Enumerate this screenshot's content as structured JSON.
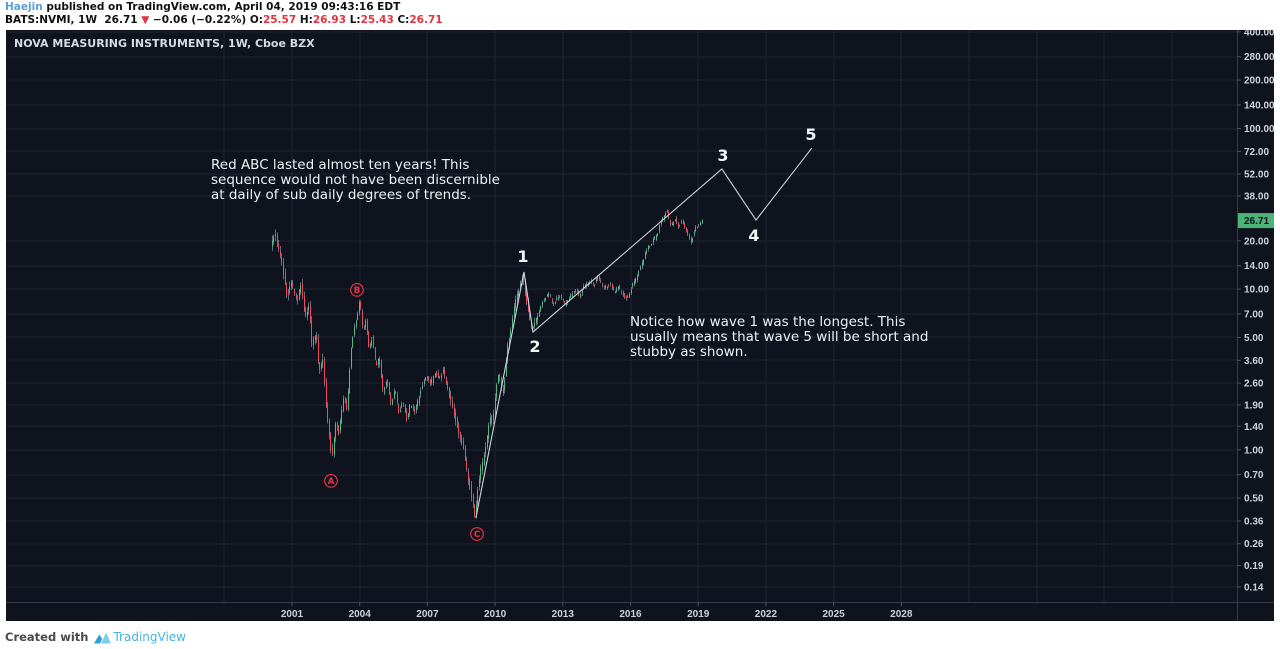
{
  "header": {
    "author": "Haejin",
    "published": " published on TradingView.com, April 04, 2019 09:43:16 EDT",
    "symbol": "BATS:NVMI, 1W",
    "last": "26.71",
    "arrow": "▼",
    "change": "−0.06 (−0.22%)",
    "o_label": "O:",
    "o": "25.57",
    "h_label": "H:",
    "h": "26.93",
    "l_label": "L:",
    "l": "25.43",
    "c_label": "C:",
    "c": "26.71"
  },
  "chart": {
    "title": "NOVA MEASURING INSTRUMENTS, 1W, Cboe BZX",
    "price_badge": "26.71",
    "annotations": [
      {
        "lines": [
          "Red ABC lasted almost ten years! This",
          "sequence would not have been discernible",
          "at daily of sub daily degrees of trends."
        ]
      },
      {
        "lines": [
          "Notice how wave 1 was the longest. This",
          "usually means that wave 5 will be short and",
          "stubby as shown."
        ]
      }
    ],
    "colors": {
      "background": "#0f131e",
      "grid": "#1e2433",
      "axis_line": "#363c4e",
      "axis_text": "#ced2da",
      "candle_up": "#53b987",
      "candle_down": "#eb4d5c",
      "wick": "rgba(171,178,189,0.55)",
      "projection": "#cfd4dd",
      "wave_number": "#f3f5f8",
      "wave_letter": "#f23645",
      "badge_bg": "#4cb277",
      "badge_text": "#07121c"
    }
  },
  "chart_data": {
    "type": "candlestick",
    "symbol": "BATS:NVMI",
    "timeframe": "1W",
    "exchange": "Cboe BZX",
    "last_price": 26.71,
    "x_axis": {
      "tick_years": [
        2001,
        2004,
        2007,
        2010,
        2013,
        2016,
        2019,
        2022,
        2025,
        2028
      ],
      "grid_years_step": 3,
      "grid_start": 1998,
      "grid_end": 2040
    },
    "y_axis": {
      "scale": "log",
      "tick_values": [
        400,
        280,
        200,
        140,
        100,
        72,
        52,
        38,
        20,
        14,
        10,
        7,
        5,
        3.6,
        2.6,
        1.9,
        1.4,
        1,
        0.7,
        0.5,
        0.36,
        0.26,
        0.19,
        0.14
      ],
      "tick_labels": [
        "400.00",
        "280.00",
        "200.00",
        "140.00",
        "100.00",
        "72.00",
        "52.00",
        "38.00",
        "20.00",
        "14.00",
        "10.00",
        "7.00",
        "5.00",
        "3.60",
        "2.60",
        "1.90",
        "1.40",
        "1.00",
        "0.70",
        "0.50",
        "0.36",
        "0.26",
        "0.19",
        "0.14"
      ]
    },
    "price_path": [
      [
        2000.11,
        17.9
      ],
      [
        2000.29,
        22.3
      ],
      [
        2000.6,
        14.8
      ],
      [
        2000.82,
        8.9
      ],
      [
        2001.04,
        10.8
      ],
      [
        2001.27,
        8.3
      ],
      [
        2001.44,
        11.1
      ],
      [
        2001.62,
        6.4
      ],
      [
        2001.8,
        8.0
      ],
      [
        2001.93,
        4.5
      ],
      [
        2002.11,
        5.6
      ],
      [
        2002.24,
        3.05
      ],
      [
        2002.42,
        3.62
      ],
      [
        2002.55,
        1.9
      ],
      [
        2002.68,
        1.33
      ],
      [
        2002.82,
        0.89
      ],
      [
        2002.99,
        1.53
      ],
      [
        2003.13,
        1.24
      ],
      [
        2003.35,
        2.19
      ],
      [
        2003.48,
        1.77
      ],
      [
        2003.66,
        4.18
      ],
      [
        2003.79,
        5.57
      ],
      [
        2003.92,
        6.6
      ],
      [
        2004.06,
        8.43
      ],
      [
        2004.19,
        5.57
      ],
      [
        2004.32,
        6.6
      ],
      [
        2004.46,
        4.3
      ],
      [
        2004.59,
        4.96
      ],
      [
        2004.77,
        3.23
      ],
      [
        2004.9,
        3.89
      ],
      [
        2005.08,
        2.35
      ],
      [
        2005.25,
        2.8
      ],
      [
        2005.43,
        1.9
      ],
      [
        2005.61,
        2.35
      ],
      [
        2005.79,
        1.72
      ],
      [
        2005.96,
        2.04
      ],
      [
        2006.14,
        1.53
      ],
      [
        2006.32,
        1.9
      ],
      [
        2006.49,
        1.72
      ],
      [
        2006.67,
        2.19
      ],
      [
        2006.85,
        2.53
      ],
      [
        2007.03,
        2.84
      ],
      [
        2007.2,
        2.53
      ],
      [
        2007.38,
        3.14
      ],
      [
        2007.56,
        2.8
      ],
      [
        2007.74,
        3.05
      ],
      [
        2007.91,
        2.53
      ],
      [
        2008.09,
        2.04
      ],
      [
        2008.27,
        1.64
      ],
      [
        2008.44,
        1.24
      ],
      [
        2008.62,
        1.07
      ],
      [
        2008.75,
        0.8
      ],
      [
        2008.89,
        0.65
      ],
      [
        2009.02,
        0.49
      ],
      [
        2009.15,
        0.376
      ],
      [
        2009.28,
        0.56
      ],
      [
        2009.42,
        0.75
      ],
      [
        2009.55,
        0.93
      ],
      [
        2009.68,
        1.15
      ],
      [
        2009.82,
        1.64
      ],
      [
        2009.95,
        1.43
      ],
      [
        2010.08,
        2.35
      ],
      [
        2010.22,
        3.14
      ],
      [
        2010.35,
        2.19
      ],
      [
        2010.48,
        2.92
      ],
      [
        2010.61,
        4.48
      ],
      [
        2010.75,
        5.57
      ],
      [
        2010.88,
        7.41
      ],
      [
        2011.01,
        9.19
      ],
      [
        2011.15,
        10.9
      ],
      [
        2011.28,
        12.4
      ],
      [
        2011.41,
        8.55
      ],
      [
        2011.54,
        6.9
      ],
      [
        2011.68,
        5.57
      ],
      [
        2011.86,
        6.6
      ],
      [
        2012.03,
        7.62
      ],
      [
        2012.21,
        8.55
      ],
      [
        2012.43,
        9.19
      ],
      [
        2012.65,
        8.2
      ],
      [
        2012.88,
        9.19
      ],
      [
        2013.1,
        8.0
      ],
      [
        2013.32,
        8.8
      ],
      [
        2013.54,
        9.9
      ],
      [
        2013.76,
        9.06
      ],
      [
        2013.98,
        10.2
      ],
      [
        2014.21,
        11.4
      ],
      [
        2014.43,
        10.6
      ],
      [
        2014.65,
        11.7
      ],
      [
        2014.87,
        10.2
      ],
      [
        2015.09,
        10.9
      ],
      [
        2015.31,
        9.6
      ],
      [
        2015.53,
        10.2
      ],
      [
        2015.76,
        9.19
      ],
      [
        2015.89,
        8.55
      ],
      [
        2016.07,
        9.9
      ],
      [
        2016.24,
        11.4
      ],
      [
        2016.42,
        13.2
      ],
      [
        2016.64,
        15.6
      ],
      [
        2016.86,
        18.0
      ],
      [
        2017.09,
        20.8
      ],
      [
        2017.31,
        24.0
      ],
      [
        2017.48,
        27.7
      ],
      [
        2017.66,
        30.2
      ],
      [
        2017.84,
        25.1
      ],
      [
        2018.02,
        27.7
      ],
      [
        2018.19,
        24.0
      ],
      [
        2018.37,
        26.2
      ],
      [
        2018.55,
        22.7
      ],
      [
        2018.73,
        20.2
      ],
      [
        2018.9,
        23.3
      ],
      [
        2019.08,
        24.5
      ],
      [
        2019.26,
        26.71
      ]
    ],
    "projection_line": [
      [
        2009.15,
        0.376
      ],
      [
        2011.28,
        12.78
      ],
      [
        2011.68,
        5.41
      ],
      [
        2020.05,
        56.0
      ],
      [
        2021.56,
        26.9
      ],
      [
        2024.04,
        75.7
      ]
    ],
    "elliott_waves": {
      "white_numbers": [
        {
          "label": "1",
          "year": 2011.23,
          "price": 15.85
        },
        {
          "label": "2",
          "year": 2011.77,
          "price": 4.36
        },
        {
          "label": "3",
          "year": 2020.1,
          "price": 67.4
        },
        {
          "label": "4",
          "year": 2021.47,
          "price": 21.4
        },
        {
          "label": "5",
          "year": 2024.0,
          "price": 91.1
        }
      ],
      "red_letters": [
        {
          "label": "A",
          "year": 2002.73,
          "price": 0.64
        },
        {
          "label": "B",
          "year": 2003.88,
          "price": 9.89
        },
        {
          "label": "C",
          "year": 2009.2,
          "price": 0.299
        }
      ]
    }
  },
  "footer": {
    "created_with": "Created with",
    "brand": "TradingView"
  }
}
